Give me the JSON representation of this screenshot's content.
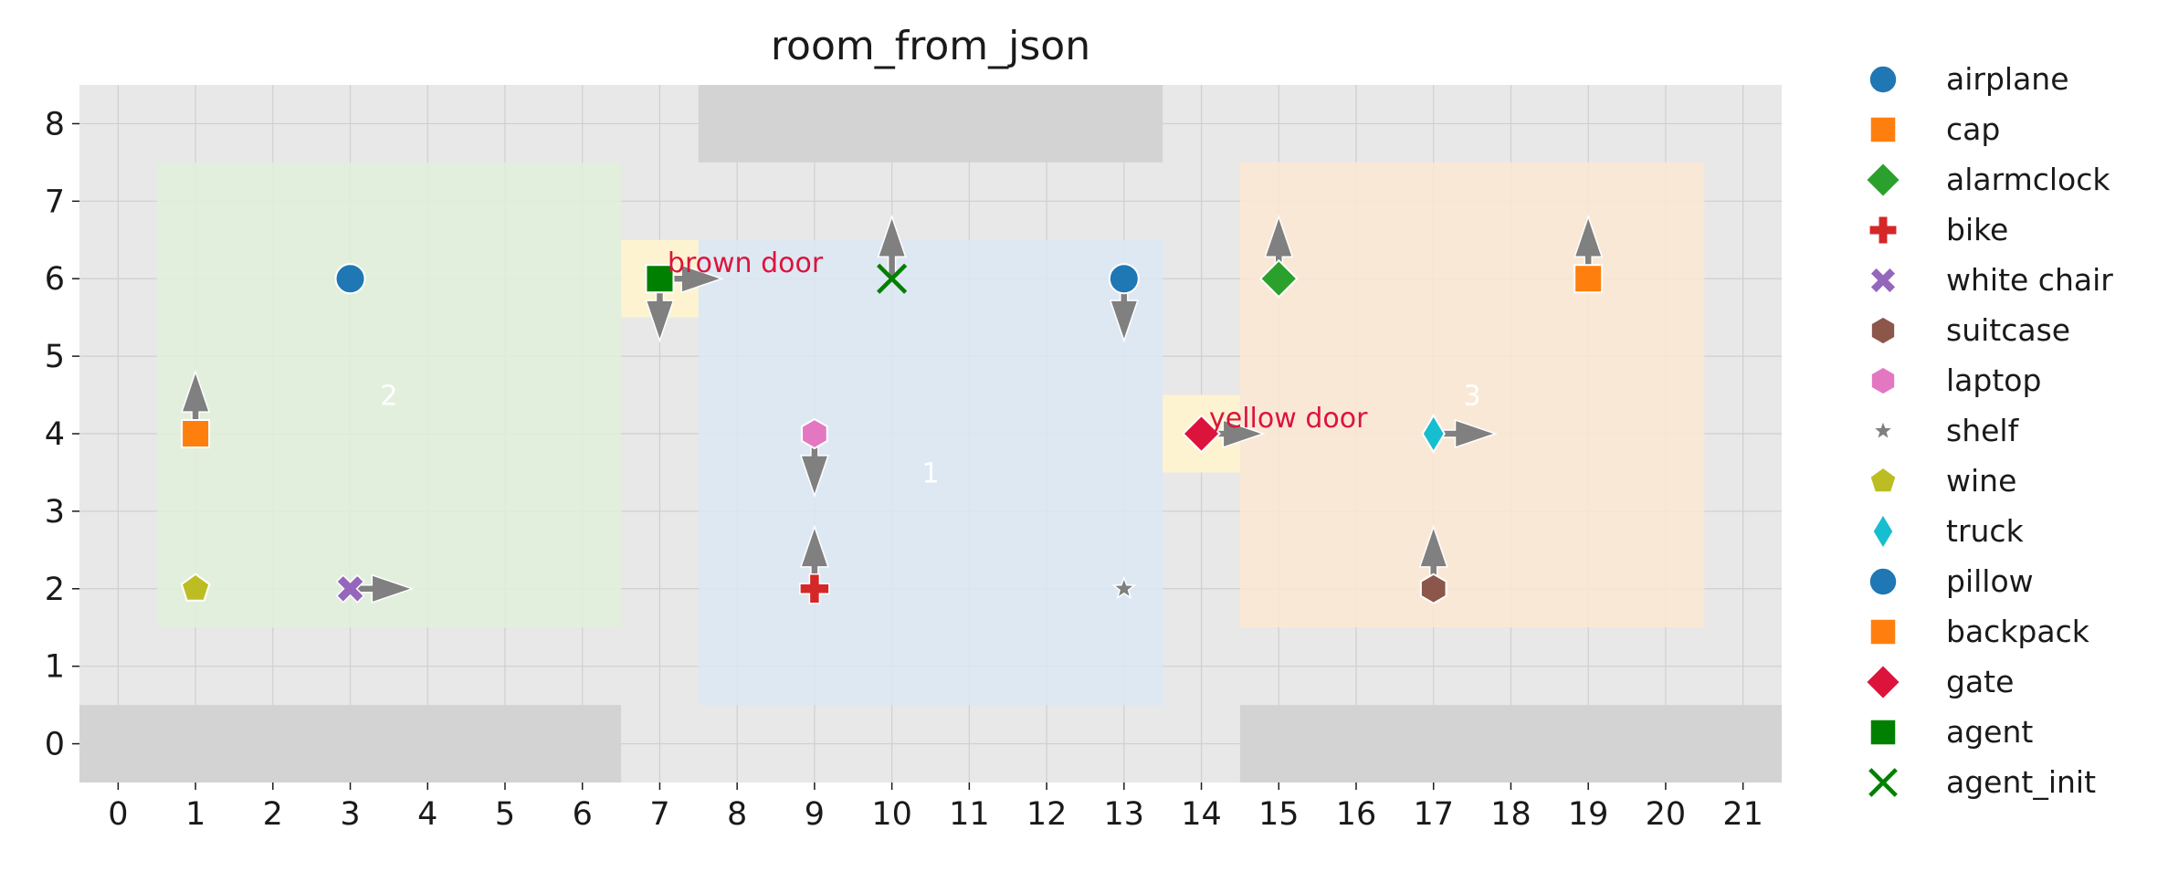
{
  "chart_data": {
    "type": "scatter",
    "title": "room_from_json",
    "xlabel": "",
    "ylabel": "",
    "xlim": [
      -0.5,
      21.5
    ],
    "ylim": [
      -0.5,
      8.5
    ],
    "xticks": [
      "0",
      "1",
      "2",
      "3",
      "4",
      "5",
      "6",
      "7",
      "8",
      "9",
      "10",
      "11",
      "12",
      "13",
      "14",
      "15",
      "16",
      "17",
      "18",
      "19",
      "20",
      "21"
    ],
    "yticks": [
      "0",
      "1",
      "2",
      "3",
      "4",
      "5",
      "6",
      "7",
      "8"
    ],
    "grid": true,
    "legend_position": "outside-right",
    "background_color": "#e8e8e8",
    "walls": [
      {
        "x0": -0.5,
        "x1": 6.5,
        "y0": -0.5,
        "y1": 0.5
      },
      {
        "x0": 14.5,
        "x1": 21.5,
        "y0": -0.5,
        "y1": 0.5
      },
      {
        "x0": 7.5,
        "x1": 13.5,
        "y0": 7.5,
        "y1": 8.5
      }
    ],
    "rooms": [
      {
        "label": "1",
        "x0": 7.5,
        "x1": 13.5,
        "y0": 0.5,
        "y1": 6.5,
        "color": "#dce8f5",
        "label_x": 10.5,
        "label_y": 3.5
      },
      {
        "label": "2",
        "x0": 0.5,
        "x1": 6.5,
        "y0": 1.5,
        "y1": 7.5,
        "color": "#e0f0da",
        "label_x": 3.5,
        "label_y": 4.5
      },
      {
        "label": "3",
        "x0": 14.5,
        "x1": 20.5,
        "y0": 1.5,
        "y1": 7.5,
        "color": "#fde8d2",
        "label_x": 17.5,
        "label_y": 4.5
      }
    ],
    "doors": [
      {
        "label": "brown door",
        "x0": 6.5,
        "x1": 7.5,
        "y0": 5.5,
        "y1": 6.5,
        "color": "#fdf3d0",
        "label_x": 7.1,
        "label_y": 6.2
      },
      {
        "label": "yellow door",
        "x0": 13.5,
        "x1": 14.5,
        "y0": 3.5,
        "y1": 4.5,
        "color": "#fdf3d0",
        "label_x": 14.1,
        "label_y": 4.2
      }
    ],
    "series": [
      {
        "name": "airplane",
        "marker": "circle",
        "color": "#1f77b4",
        "points": [
          [
            3,
            6
          ]
        ],
        "directions": [
          null
        ]
      },
      {
        "name": "cap",
        "marker": "square",
        "color": "#ff7f0e",
        "points": [
          [
            1,
            4
          ]
        ],
        "directions": [
          "up"
        ]
      },
      {
        "name": "alarmclock",
        "marker": "diamond",
        "color": "#2ca02c",
        "points": [
          [
            15,
            6
          ]
        ],
        "directions": [
          "up"
        ]
      },
      {
        "name": "bike",
        "marker": "plus",
        "color": "#d62728",
        "points": [
          [
            9,
            2
          ]
        ],
        "directions": [
          "up"
        ]
      },
      {
        "name": "white chair",
        "marker": "x",
        "color": "#9467bd",
        "points": [
          [
            3,
            2
          ]
        ],
        "directions": [
          "right"
        ]
      },
      {
        "name": "suitcase",
        "marker": "hexagon",
        "color": "#8c564b",
        "points": [
          [
            17,
            2
          ]
        ],
        "directions": [
          "up"
        ]
      },
      {
        "name": "laptop",
        "marker": "hexagon",
        "color": "#e377c2",
        "points": [
          [
            9,
            4
          ]
        ],
        "directions": [
          "down"
        ]
      },
      {
        "name": "shelf",
        "marker": "star",
        "color": "#7f7f7f",
        "points": [
          [
            13,
            2
          ]
        ],
        "directions": [
          null
        ]
      },
      {
        "name": "wine",
        "marker": "pentagon",
        "color": "#bcbd22",
        "points": [
          [
            1,
            2
          ]
        ],
        "directions": [
          null
        ]
      },
      {
        "name": "truck",
        "marker": "thin_diamond",
        "color": "#17becf",
        "points": [
          [
            17,
            4
          ]
        ],
        "directions": [
          "right"
        ]
      },
      {
        "name": "pillow",
        "marker": "circle",
        "color": "#1f77b4",
        "points": [
          [
            13,
            6
          ]
        ],
        "directions": [
          "down"
        ]
      },
      {
        "name": "backpack",
        "marker": "square",
        "color": "#ff7f0e",
        "points": [
          [
            19,
            6
          ]
        ],
        "directions": [
          "up"
        ]
      },
      {
        "name": "gate",
        "marker": "diamond",
        "color": "#dc143c",
        "points": [
          [
            14,
            4
          ]
        ],
        "directions": [
          "right"
        ]
      },
      {
        "name": "agent",
        "marker": "square",
        "color": "#008000",
        "points": [
          [
            7,
            6
          ]
        ],
        "directions": [
          "right"
        ]
      },
      {
        "name": "agent_init",
        "marker": "xline",
        "color": "#008000",
        "points": [
          [
            10,
            6
          ]
        ],
        "directions": [
          "up"
        ]
      }
    ],
    "extra_arrows": [
      {
        "x": 7,
        "y": 6,
        "direction": "down"
      }
    ]
  }
}
